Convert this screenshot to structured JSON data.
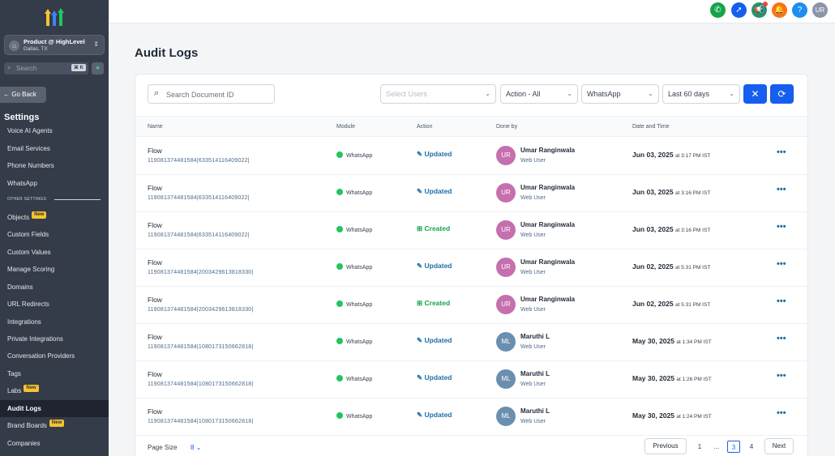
{
  "sidebar": {
    "location": {
      "name": "Product @ HighLevel",
      "city": "Dallas, TX"
    },
    "search": {
      "placeholder": "Search",
      "shortcut": "⌘ K"
    },
    "go_back": "← Go Back",
    "section_title": "Settings",
    "other_settings_label": "OTHER SETTINGS",
    "items": [
      {
        "label": "Voice AI Agents",
        "badge": ""
      },
      {
        "label": "Email Services",
        "badge": ""
      },
      {
        "label": "Phone Numbers",
        "badge": ""
      },
      {
        "label": "WhatsApp",
        "badge": ""
      },
      {
        "label": "Objects",
        "badge": "New"
      },
      {
        "label": "Custom Fields",
        "badge": ""
      },
      {
        "label": "Custom Values",
        "badge": ""
      },
      {
        "label": "Manage Scoring",
        "badge": ""
      },
      {
        "label": "Domains",
        "badge": ""
      },
      {
        "label": "URL Redirects",
        "badge": ""
      },
      {
        "label": "Integrations",
        "badge": ""
      },
      {
        "label": "Private Integrations",
        "badge": ""
      },
      {
        "label": "Conversation Providers",
        "badge": ""
      },
      {
        "label": "Tags",
        "badge": ""
      },
      {
        "label": "Labs",
        "badge": "New"
      },
      {
        "label": "Audit Logs",
        "badge": ""
      },
      {
        "label": "Brand Boards",
        "badge": "New"
      },
      {
        "label": "Companies",
        "badge": ""
      }
    ]
  },
  "topbar": {
    "user_initials": "UR",
    "icons": [
      "phone-icon",
      "rocket-icon",
      "megaphone-icon",
      "bell-icon",
      "help-icon"
    ]
  },
  "page": {
    "title": "Audit Logs"
  },
  "filters": {
    "search_placeholder": "Search Document ID",
    "users_placeholder": "Select Users",
    "action": "Action - All",
    "module": "WhatsApp",
    "range": "Last 60 days"
  },
  "table": {
    "headers": {
      "name": "Name",
      "module": "Module",
      "action": "Action",
      "done_by": "Done by",
      "date": "Date and Time"
    },
    "rows": [
      {
        "name": "Flow",
        "id": "119081374481584|633514116409022|",
        "module": "WhatsApp",
        "action": "Updated",
        "initials": "UR",
        "user": "Umar Ranginwala",
        "role": "Web User",
        "date": "Jun 03, 2025",
        "time": "at 3:17 PM IST"
      },
      {
        "name": "Flow",
        "id": "119081374481584|633514116409022|",
        "module": "WhatsApp",
        "action": "Updated",
        "initials": "UR",
        "user": "Umar Ranginwala",
        "role": "Web User",
        "date": "Jun 03, 2025",
        "time": "at 3:16 PM IST"
      },
      {
        "name": "Flow",
        "id": "119081374481584|633514116409022|",
        "module": "WhatsApp",
        "action": "Created",
        "initials": "UR",
        "user": "Umar Ranginwala",
        "role": "Web User",
        "date": "Jun 03, 2025",
        "time": "at 3:16 PM IST"
      },
      {
        "name": "Flow",
        "id": "119081374481584|2003429613818330|",
        "module": "WhatsApp",
        "action": "Updated",
        "initials": "UR",
        "user": "Umar Ranginwala",
        "role": "Web User",
        "date": "Jun 02, 2025",
        "time": "at 5:31 PM IST"
      },
      {
        "name": "Flow",
        "id": "119081374481584|2003429613818330|",
        "module": "WhatsApp",
        "action": "Created",
        "initials": "UR",
        "user": "Umar Ranginwala",
        "role": "Web User",
        "date": "Jun 02, 2025",
        "time": "at 5:31 PM IST"
      },
      {
        "name": "Flow",
        "id": "119081374481584|1080173150662818|",
        "module": "WhatsApp",
        "action": "Updated",
        "initials": "ML",
        "user": "Maruthi L",
        "role": "Web User",
        "date": "May 30, 2025",
        "time": "at 1:34 PM IST"
      },
      {
        "name": "Flow",
        "id": "119081374481584|1080173150662818|",
        "module": "WhatsApp",
        "action": "Updated",
        "initials": "ML",
        "user": "Maruthi L",
        "role": "Web User",
        "date": "May 30, 2025",
        "time": "at 1:26 PM IST"
      },
      {
        "name": "Flow",
        "id": "119081374481584|1080173150662818|",
        "module": "WhatsApp",
        "action": "Updated",
        "initials": "ML",
        "user": "Maruthi L",
        "role": "Web User",
        "date": "May 30, 2025",
        "time": "at 1:24 PM IST"
      }
    ]
  },
  "pagination": {
    "page_size_label": "Page Size",
    "page_size": "8",
    "previous": "Previous",
    "next": "Next",
    "pages": [
      "1",
      "...",
      "3",
      "4"
    ],
    "current": "3"
  },
  "colors": {
    "primary": "#155eef",
    "sidebar": "#343b49",
    "avatar_ur": "#c66fae",
    "avatar_ml": "#6b8fae"
  }
}
